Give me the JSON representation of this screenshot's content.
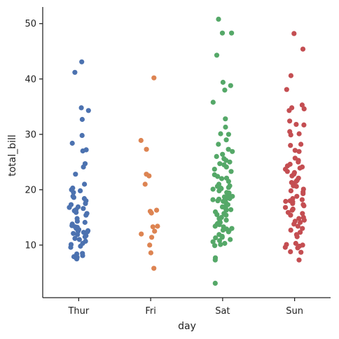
{
  "chart_data": {
    "type": "scatter",
    "title": "",
    "xlabel": "day",
    "ylabel": "total_bill",
    "ylim": [
      0.5,
      53
    ],
    "yticks": [
      10,
      20,
      30,
      40,
      50
    ],
    "grid": false,
    "legend": "none",
    "categories": [
      "Thur",
      "Fri",
      "Sat",
      "Sun"
    ],
    "series": [
      {
        "category": "Thur",
        "color": "#4c72b0",
        "values": [
          43.1,
          41.2,
          34.8,
          34.3,
          32.7,
          29.8,
          28.4,
          27.2,
          27.0,
          24.7,
          24.1,
          22.8,
          21.0,
          20.3,
          19.8,
          19.5,
          18.8,
          18.4,
          18.0,
          17.5,
          17.3,
          16.9,
          16.6,
          16.4,
          16.2,
          15.9,
          15.7,
          15.4,
          14.8,
          14.3,
          14.1,
          13.8,
          13.5,
          13.3,
          13.0,
          12.8,
          12.6,
          12.5,
          12.3,
          12.1,
          11.9,
          11.7,
          11.5,
          11.2,
          11.0,
          10.7,
          10.3,
          10.1,
          9.8,
          9.6,
          8.5,
          8.4,
          8.1,
          7.9,
          7.6,
          7.5,
          7.8,
          12.4,
          13.2,
          16.8,
          18.6,
          20.0
        ]
      },
      {
        "category": "Fri",
        "color": "#dd8452",
        "values": [
          40.2,
          28.9,
          27.3,
          22.8,
          22.5,
          21.0,
          16.3,
          16.1,
          15.8,
          13.4,
          13.3,
          12.5,
          12.0,
          11.4,
          10.0,
          8.6,
          5.8
        ]
      },
      {
        "category": "Sat",
        "color": "#55a868",
        "values": [
          50.8,
          48.3,
          48.3,
          44.3,
          39.4,
          38.8,
          38.0,
          35.8,
          32.8,
          31.3,
          30.1,
          30.0,
          29.0,
          28.2,
          27.3,
          26.9,
          26.4,
          26.0,
          25.6,
          25.3,
          25.0,
          24.5,
          24.1,
          23.7,
          23.3,
          22.7,
          22.4,
          22.0,
          21.5,
          21.0,
          20.7,
          20.6,
          20.4,
          20.3,
          20.2,
          20.1,
          19.8,
          19.5,
          19.4,
          19.1,
          18.8,
          18.7,
          18.4,
          18.3,
          18.2,
          18.0,
          17.9,
          17.8,
          17.5,
          17.1,
          16.9,
          16.6,
          16.4,
          16.3,
          16.0,
          15.7,
          15.5,
          15.4,
          15.0,
          14.8,
          14.5,
          14.3,
          14.1,
          13.9,
          13.7,
          13.4,
          13.3,
          13.0,
          12.9,
          12.7,
          12.6,
          12.4,
          11.9,
          11.6,
          11.4,
          11.3,
          11.0,
          10.8,
          10.6,
          10.3,
          10.1,
          9.9,
          7.7,
          7.3,
          3.1,
          17.3,
          18.5,
          22.1,
          24.7,
          13.8
        ]
      },
      {
        "category": "Sun",
        "color": "#c44e52",
        "values": [
          48.2,
          45.4,
          40.6,
          38.1,
          35.3,
          34.8,
          34.6,
          34.3,
          32.4,
          31.8,
          31.7,
          30.5,
          30.1,
          29.9,
          28.2,
          28.0,
          27.1,
          26.9,
          25.7,
          25.3,
          25.0,
          24.6,
          24.3,
          23.9,
          23.7,
          23.3,
          23.1,
          22.8,
          22.5,
          22.1,
          21.7,
          21.5,
          21.3,
          21.0,
          20.7,
          20.6,
          19.8,
          19.6,
          19.3,
          18.8,
          18.4,
          18.2,
          18.0,
          17.9,
          17.8,
          17.5,
          17.3,
          17.1,
          16.8,
          16.5,
          16.3,
          15.9,
          15.7,
          15.4,
          15.0,
          14.8,
          14.5,
          14.1,
          13.8,
          13.4,
          13.0,
          12.7,
          12.3,
          11.9,
          11.5,
          10.3,
          10.1,
          10.0,
          9.8,
          9.6,
          9.5,
          8.8,
          8.7,
          7.3,
          20.1,
          14.3,
          24.1
        ]
      }
    ]
  }
}
